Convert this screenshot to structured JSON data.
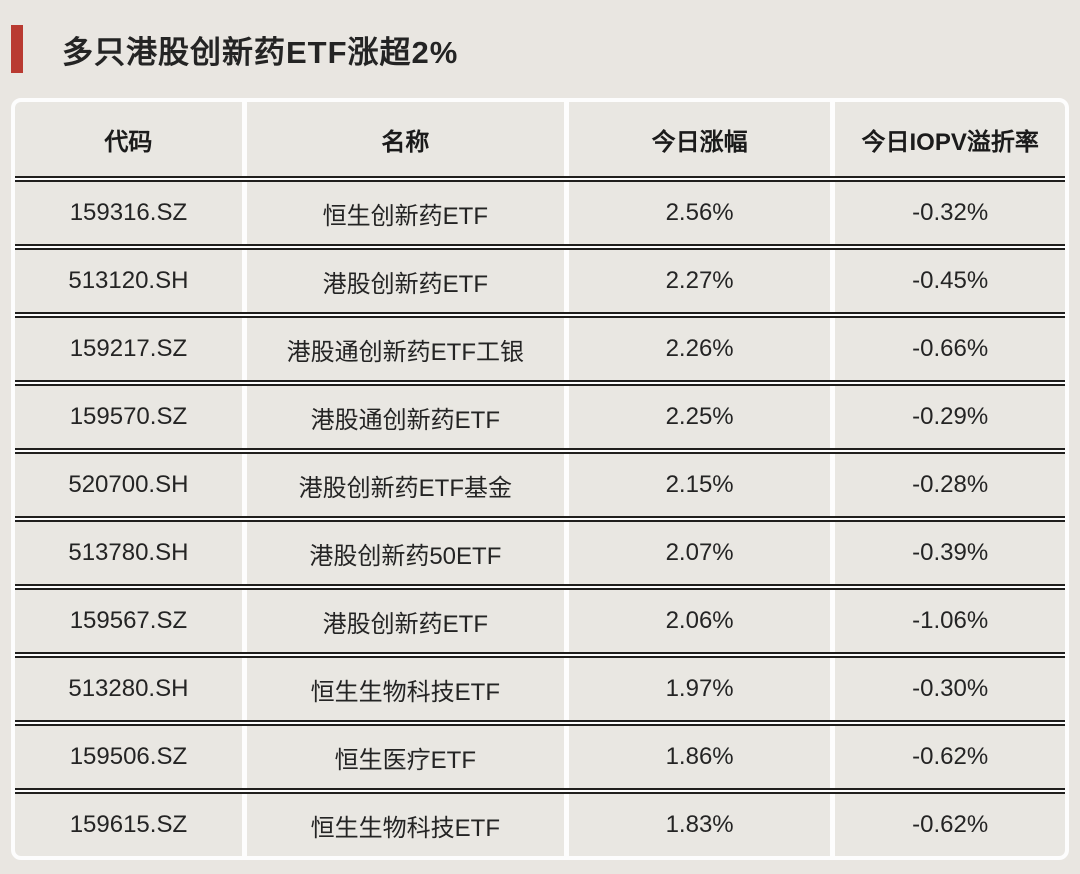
{
  "title": "多只港股创新药ETF涨超2%",
  "colors": {
    "accent_red": "#b93a31",
    "page_background": "#e9e6e1",
    "cell_background": "#e9e7e2",
    "grid_white": "#fdfdfd",
    "rule_dark": "#201f1d",
    "text": "#242424"
  },
  "table": {
    "columns": [
      "代码",
      "名称",
      "今日涨幅",
      "今日IOPV溢折率"
    ],
    "rows": [
      {
        "code": "159316.SZ",
        "name": "恒生创新药ETF",
        "change": "2.56%",
        "iopv": "-0.32%"
      },
      {
        "code": "513120.SH",
        "name": "港股创新药ETF",
        "change": "2.27%",
        "iopv": "-0.45%"
      },
      {
        "code": "159217.SZ",
        "name": "港股通创新药ETF工银",
        "change": "2.26%",
        "iopv": "-0.66%"
      },
      {
        "code": "159570.SZ",
        "name": "港股通创新药ETF",
        "change": "2.25%",
        "iopv": "-0.29%"
      },
      {
        "code": "520700.SH",
        "name": "港股创新药ETF基金",
        "change": "2.15%",
        "iopv": "-0.28%"
      },
      {
        "code": "513780.SH",
        "name": "港股创新药50ETF",
        "change": "2.07%",
        "iopv": "-0.39%"
      },
      {
        "code": "159567.SZ",
        "name": "港股创新药ETF",
        "change": "2.06%",
        "iopv": "-1.06%"
      },
      {
        "code": "513280.SH",
        "name": "恒生生物科技ETF",
        "change": "1.97%",
        "iopv": "-0.30%"
      },
      {
        "code": "159506.SZ",
        "name": "恒生医疗ETF",
        "change": "1.86%",
        "iopv": "-0.62%"
      },
      {
        "code": "159615.SZ",
        "name": "恒生生物科技ETF",
        "change": "1.83%",
        "iopv": "-0.62%"
      }
    ]
  },
  "chart_data": {
    "type": "table",
    "title": "多只港股创新药ETF涨超2%",
    "columns": [
      "代码",
      "名称",
      "今日涨幅",
      "今日IOPV溢折率"
    ],
    "rows": [
      [
        "159316.SZ",
        "恒生创新药ETF",
        "2.56%",
        "-0.32%"
      ],
      [
        "513120.SH",
        "港股创新药ETF",
        "2.27%",
        "-0.45%"
      ],
      [
        "159217.SZ",
        "港股通创新药ETF工银",
        "2.26%",
        "-0.66%"
      ],
      [
        "159570.SZ",
        "港股通创新药ETF",
        "2.25%",
        "-0.29%"
      ],
      [
        "520700.SH",
        "港股创新药ETF基金",
        "2.15%",
        "-0.28%"
      ],
      [
        "513780.SH",
        "港股创新药50ETF",
        "2.07%",
        "-0.39%"
      ],
      [
        "159567.SZ",
        "港股创新药ETF",
        "2.06%",
        "-1.06%"
      ],
      [
        "513280.SH",
        "恒生生物科技ETF",
        "1.97%",
        "-0.30%"
      ],
      [
        "159506.SZ",
        "恒生医疗ETF",
        "1.86%",
        "-0.62%"
      ],
      [
        "159615.SZ",
        "恒生生物科技ETF",
        "1.83%",
        "-0.62%"
      ]
    ]
  }
}
